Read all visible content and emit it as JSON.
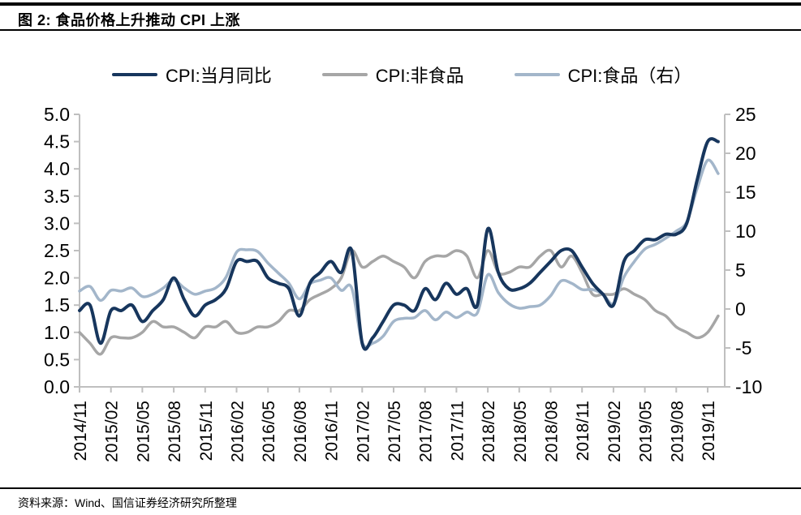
{
  "header": {
    "title": "图 2: 食品价格上升推动 CPI 上涨"
  },
  "footer": {
    "source": "资料来源：Wind、国信证券经济研究所整理"
  },
  "legend": [
    {
      "label": "CPI:当月同比",
      "color": "#17365D"
    },
    {
      "label": "CPI:非食品",
      "color": "#A6A6A6"
    },
    {
      "label": "CPI:食品（右）",
      "color": "#A3B6CA"
    }
  ],
  "chart_data": {
    "type": "line",
    "title": "图 2: 食品价格上升推动 CPI 上涨",
    "legend_position": "top",
    "grid": false,
    "axis_color": "#BFBFBF",
    "x_tick_step": 3,
    "x": [
      "2014/11",
      "2014/12",
      "2015/01",
      "2015/02",
      "2015/03",
      "2015/04",
      "2015/05",
      "2015/06",
      "2015/07",
      "2015/08",
      "2015/09",
      "2015/10",
      "2015/11",
      "2015/12",
      "2016/01",
      "2016/02",
      "2016/03",
      "2016/04",
      "2016/05",
      "2016/06",
      "2016/07",
      "2016/08",
      "2016/09",
      "2016/10",
      "2016/11",
      "2016/12",
      "2017/01",
      "2017/02",
      "2017/03",
      "2017/04",
      "2017/05",
      "2017/06",
      "2017/07",
      "2017/08",
      "2017/09",
      "2017/10",
      "2017/11",
      "2017/12",
      "2018/01",
      "2018/02",
      "2018/03",
      "2018/04",
      "2018/05",
      "2018/06",
      "2018/07",
      "2018/08",
      "2018/09",
      "2018/10",
      "2018/11",
      "2018/12",
      "2019/01",
      "2019/02",
      "2019/03",
      "2019/04",
      "2019/05",
      "2019/06",
      "2019/07",
      "2019/08",
      "2019/09",
      "2019/10",
      "2019/11",
      "2019/12"
    ],
    "left_axis": {
      "min": 0,
      "max": 5,
      "ticks": [
        "5.0",
        "4.5",
        "4.0",
        "3.5",
        "3.0",
        "2.5",
        "2.0",
        "1.5",
        "1.0",
        "0.5",
        "0.0"
      ]
    },
    "right_axis": {
      "min": -10,
      "max": 25,
      "ticks": [
        "25",
        "20",
        "15",
        "10",
        "5",
        "0",
        "-5",
        "-10"
      ]
    },
    "series": [
      {
        "name": "CPI:非食品",
        "slug": "cpi-non-food",
        "axis": "left",
        "color": "#A6A6A6",
        "width": 3.5,
        "values": [
          1.0,
          0.8,
          0.6,
          0.9,
          0.9,
          0.9,
          1.0,
          1.2,
          1.1,
          1.1,
          1.0,
          0.9,
          1.1,
          1.1,
          1.2,
          1.0,
          1.0,
          1.1,
          1.1,
          1.2,
          1.4,
          1.4,
          1.6,
          1.7,
          1.8,
          2.0,
          2.5,
          2.2,
          2.3,
          2.4,
          2.3,
          2.2,
          2.0,
          2.3,
          2.4,
          2.4,
          2.5,
          2.4,
          2.0,
          2.5,
          2.1,
          2.1,
          2.2,
          2.2,
          2.4,
          2.5,
          2.2,
          2.4,
          2.1,
          1.7,
          1.7,
          1.7,
          1.8,
          1.7,
          1.6,
          1.4,
          1.3,
          1.1,
          1.0,
          0.9,
          1.0,
          1.3
        ]
      },
      {
        "name": "CPI:食品（右）",
        "slug": "cpi-food",
        "axis": "right",
        "color": "#A3B6CA",
        "width": 3.5,
        "values": [
          2.3,
          2.9,
          1.1,
          2.4,
          2.3,
          2.7,
          1.6,
          1.9,
          2.7,
          3.7,
          2.7,
          1.9,
          2.3,
          2.7,
          4.1,
          7.3,
          7.6,
          7.4,
          5.9,
          4.6,
          3.3,
          1.3,
          3.2,
          3.7,
          4.0,
          2.4,
          2.7,
          -4.3,
          -4.4,
          -3.5,
          -1.6,
          -1.2,
          -1.1,
          -0.2,
          -1.4,
          -0.4,
          -1.1,
          -0.4,
          -0.5,
          4.4,
          2.1,
          0.7,
          0.1,
          0.3,
          0.5,
          1.7,
          3.6,
          3.3,
          2.5,
          2.5,
          1.9,
          0.7,
          4.1,
          6.1,
          7.7,
          8.3,
          9.1,
          10.0,
          11.2,
          15.5,
          19.1,
          17.4
        ]
      },
      {
        "name": "CPI:当月同比",
        "slug": "cpi-yoy",
        "axis": "left",
        "color": "#17365D",
        "width": 4,
        "values": [
          1.4,
          1.5,
          0.8,
          1.4,
          1.4,
          1.5,
          1.2,
          1.4,
          1.6,
          2.0,
          1.6,
          1.3,
          1.5,
          1.6,
          1.8,
          2.3,
          2.3,
          2.3,
          2.0,
          1.9,
          1.8,
          1.3,
          1.9,
          2.1,
          2.3,
          2.1,
          2.5,
          0.8,
          0.9,
          1.2,
          1.5,
          1.5,
          1.4,
          1.8,
          1.6,
          1.9,
          1.7,
          1.8,
          1.5,
          2.9,
          2.1,
          1.8,
          1.8,
          1.9,
          2.1,
          2.3,
          2.5,
          2.5,
          2.2,
          1.9,
          1.7,
          1.5,
          2.3,
          2.5,
          2.7,
          2.7,
          2.8,
          2.8,
          3.0,
          3.8,
          4.5,
          4.5
        ]
      }
    ]
  }
}
